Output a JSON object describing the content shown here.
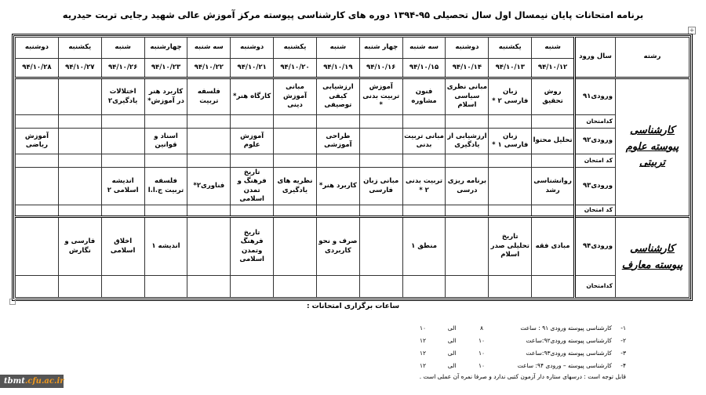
{
  "title": "برنامه امتحانات پایان نیمسال اول سال تحصیلی ۹۵-۱۳۹۴ دوره های کارشناسی پیوسته مرکز آموزش عالی شهید رجایی تربت حیدریه",
  "table": {
    "header_major": "رشته",
    "header_year": "سال ورود",
    "days": [
      "شنبه",
      "یکشنبه",
      "دوشنبه",
      "سه شنبه",
      "چهار شنبه",
      "شنبه",
      "یکشنبه",
      "دوشنبه",
      "سه شنبه",
      "چهارشنبه",
      "شنبه",
      "یکشنبه",
      "دوشنبه"
    ],
    "dates": [
      "۹۴/۱۰/۱۲",
      "۹۴/۱۰/۱۳",
      "۹۴/۱۰/۱۴",
      "۹۴/۱۰/۱۵",
      "۹۴/۱۰/۱۶",
      "۹۴/۱۰/۱۹",
      "۹۴/۱۰/۲۰",
      "۹۴/۱۰/۲۱",
      "۹۴/۱۰/۲۲",
      "۹۴/۱۰/۲۳",
      "۹۴/۱۰/۲۶",
      "۹۴/۱۰/۲۷",
      "۹۴/۱۰/۲۸"
    ],
    "sections": [
      {
        "major": "کارشناسی پیوسته علوم تربیتی",
        "rows": [
          {
            "year": "ورودی۹۱",
            "code_label": "کدامتحان",
            "courses": [
              "روش تحقیق",
              "زبان فارسی ۲ *",
              "مبانی نظری سیاسی اسلام",
              "فنون مشاوره",
              "آموزش تربیت بدنی *",
              "ارزشیابی کیفی توصیفی",
              "مبانی آموزش دینی",
              "کارگاه هنر*",
              "فلسفه تربیت",
              "کاربرد هنر در آموزش*",
              "اختلالات یادگیری۲",
              "",
              ""
            ]
          },
          {
            "year": "ورودی۹۲",
            "code_label": "کد امتحان",
            "courses": [
              "تحلیل محتوا",
              "زبان فارسی ۱ *",
              "ارزشیابی از یادگیری",
              "مبانی تربیت بدنی",
              "",
              "طراحی آموزشی",
              "",
              "آموزش علوم",
              "",
              "اسناد و قوانین",
              "",
              "",
              "آموزش ریاضی"
            ]
          },
          {
            "year": "ورودی۹۳",
            "code_label": "کد امتحان",
            "courses": [
              "روانشناسی رشد",
              "",
              "برنامه ریزی درسی",
              "تربیت بدنی ۲ *",
              "مبانی زبان فارسی",
              "کاربرد هنر*",
              "نظریه های یادگیری",
              "تاریخ فرهنگ و تمدن اسلامی",
              "فناوری۲*",
              "فلسفه تربیت ج.ا.ا",
              "اندیشه اسلامی ۲",
              "",
              ""
            ]
          }
        ]
      },
      {
        "major": "کارشناسی پیوسته معارف",
        "rows": [
          {
            "year": "ورودی۹۴",
            "code_label": "کدامتحان",
            "courses": [
              "مبادی فقه",
              "تاریخ تحلیلی صدر اسلام",
              "",
              "منطق ۱",
              "",
              "صرف و نحو کاربردی",
              "",
              "تاریخ فرهنگ وتمدن اسلامی",
              "",
              "اندیشه ۱",
              "اخلاق اسلامی",
              "فارسی و نگارش",
              ""
            ]
          }
        ]
      }
    ]
  },
  "hours": {
    "heading": "ساعات برگزاری امتحانات :",
    "lines": [
      {
        "num": "۱-",
        "label": "کارشناسی پیوسته ورودی ۹۱ : ساعت",
        "from": "۸",
        "sep": "الی",
        "to": "۱۰"
      },
      {
        "num": "۲-",
        "label": "کارشناسی پیوسته ورودی۹۲:ساعت",
        "from": "۱۰",
        "sep": "الی",
        "to": "۱۲"
      },
      {
        "num": "۳-",
        "label": "کارشناسی پیوسته ورودی۹۳:ساعت",
        "from": "۱۰",
        "sep": "الی",
        "to": "۱۲"
      },
      {
        "num": "۴-",
        "label": "کارشناسی پیوسته – ورودی ۹۴: ساعت",
        "from": "۱۰",
        "sep": "الی",
        "to": "۱۲"
      }
    ],
    "note": "قابل توجه است : درسهای ستاره دار آزمون کتبی ندارد و صرفا نمره آن عملی است ."
  },
  "watermark": {
    "part1": "tbmt",
    "part2": ".cfu.ac.ir",
    "accent": "#f29a1f"
  }
}
